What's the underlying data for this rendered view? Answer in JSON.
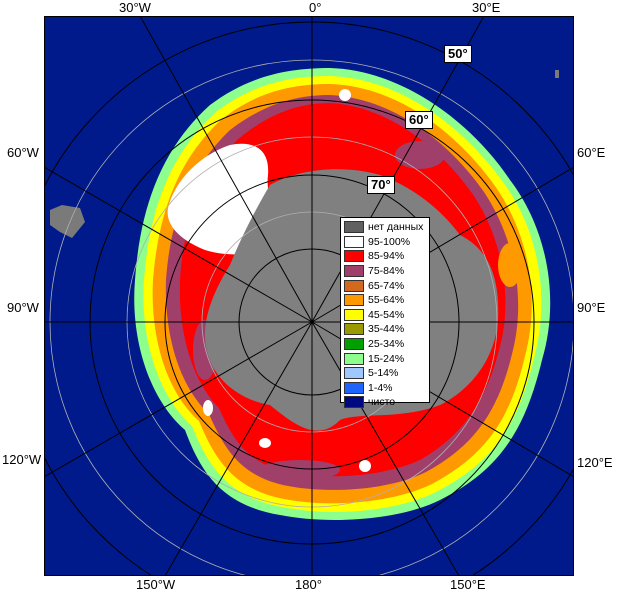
{
  "map": {
    "colors": {
      "no_data": "#808080",
      "open_water": "#001a8c",
      "land_grey": "#7a7a7a",
      "frame": "#000000"
    },
    "longitude_labels": {
      "w30": "30°W",
      "zero": "0°",
      "e30": "30°E",
      "w60": "60°W",
      "e60": "60°E",
      "w90": "90°W",
      "e90": "90°E",
      "w120": "120°W",
      "e120": "120°E",
      "w150": "150°W",
      "d180": "180°",
      "e150": "150°E"
    },
    "latitude_labels": {
      "lat50": "50°",
      "lat60": "60°",
      "lat70": "70°"
    }
  },
  "legend": {
    "items": [
      {
        "label": "нет данных",
        "color": "#606060"
      },
      {
        "label": "95-100%",
        "color": "#ffffff"
      },
      {
        "label": "85-94%",
        "color": "#ff0000"
      },
      {
        "label": "75-84%",
        "color": "#a0406a"
      },
      {
        "label": "65-74%",
        "color": "#d2691e"
      },
      {
        "label": "55-64%",
        "color": "#ff9900"
      },
      {
        "label": "45-54%",
        "color": "#ffff00"
      },
      {
        "label": "35-44%",
        "color": "#9a9a00"
      },
      {
        "label": "25-34%",
        "color": "#00a000"
      },
      {
        "label": "15-24%",
        "color": "#8cff8c"
      },
      {
        "label": "5-14%",
        "color": "#9ec8ff"
      },
      {
        "label": "1-4%",
        "color": "#1e64ff"
      },
      {
        "label": "чисто",
        "color": "#000a80"
      }
    ]
  }
}
